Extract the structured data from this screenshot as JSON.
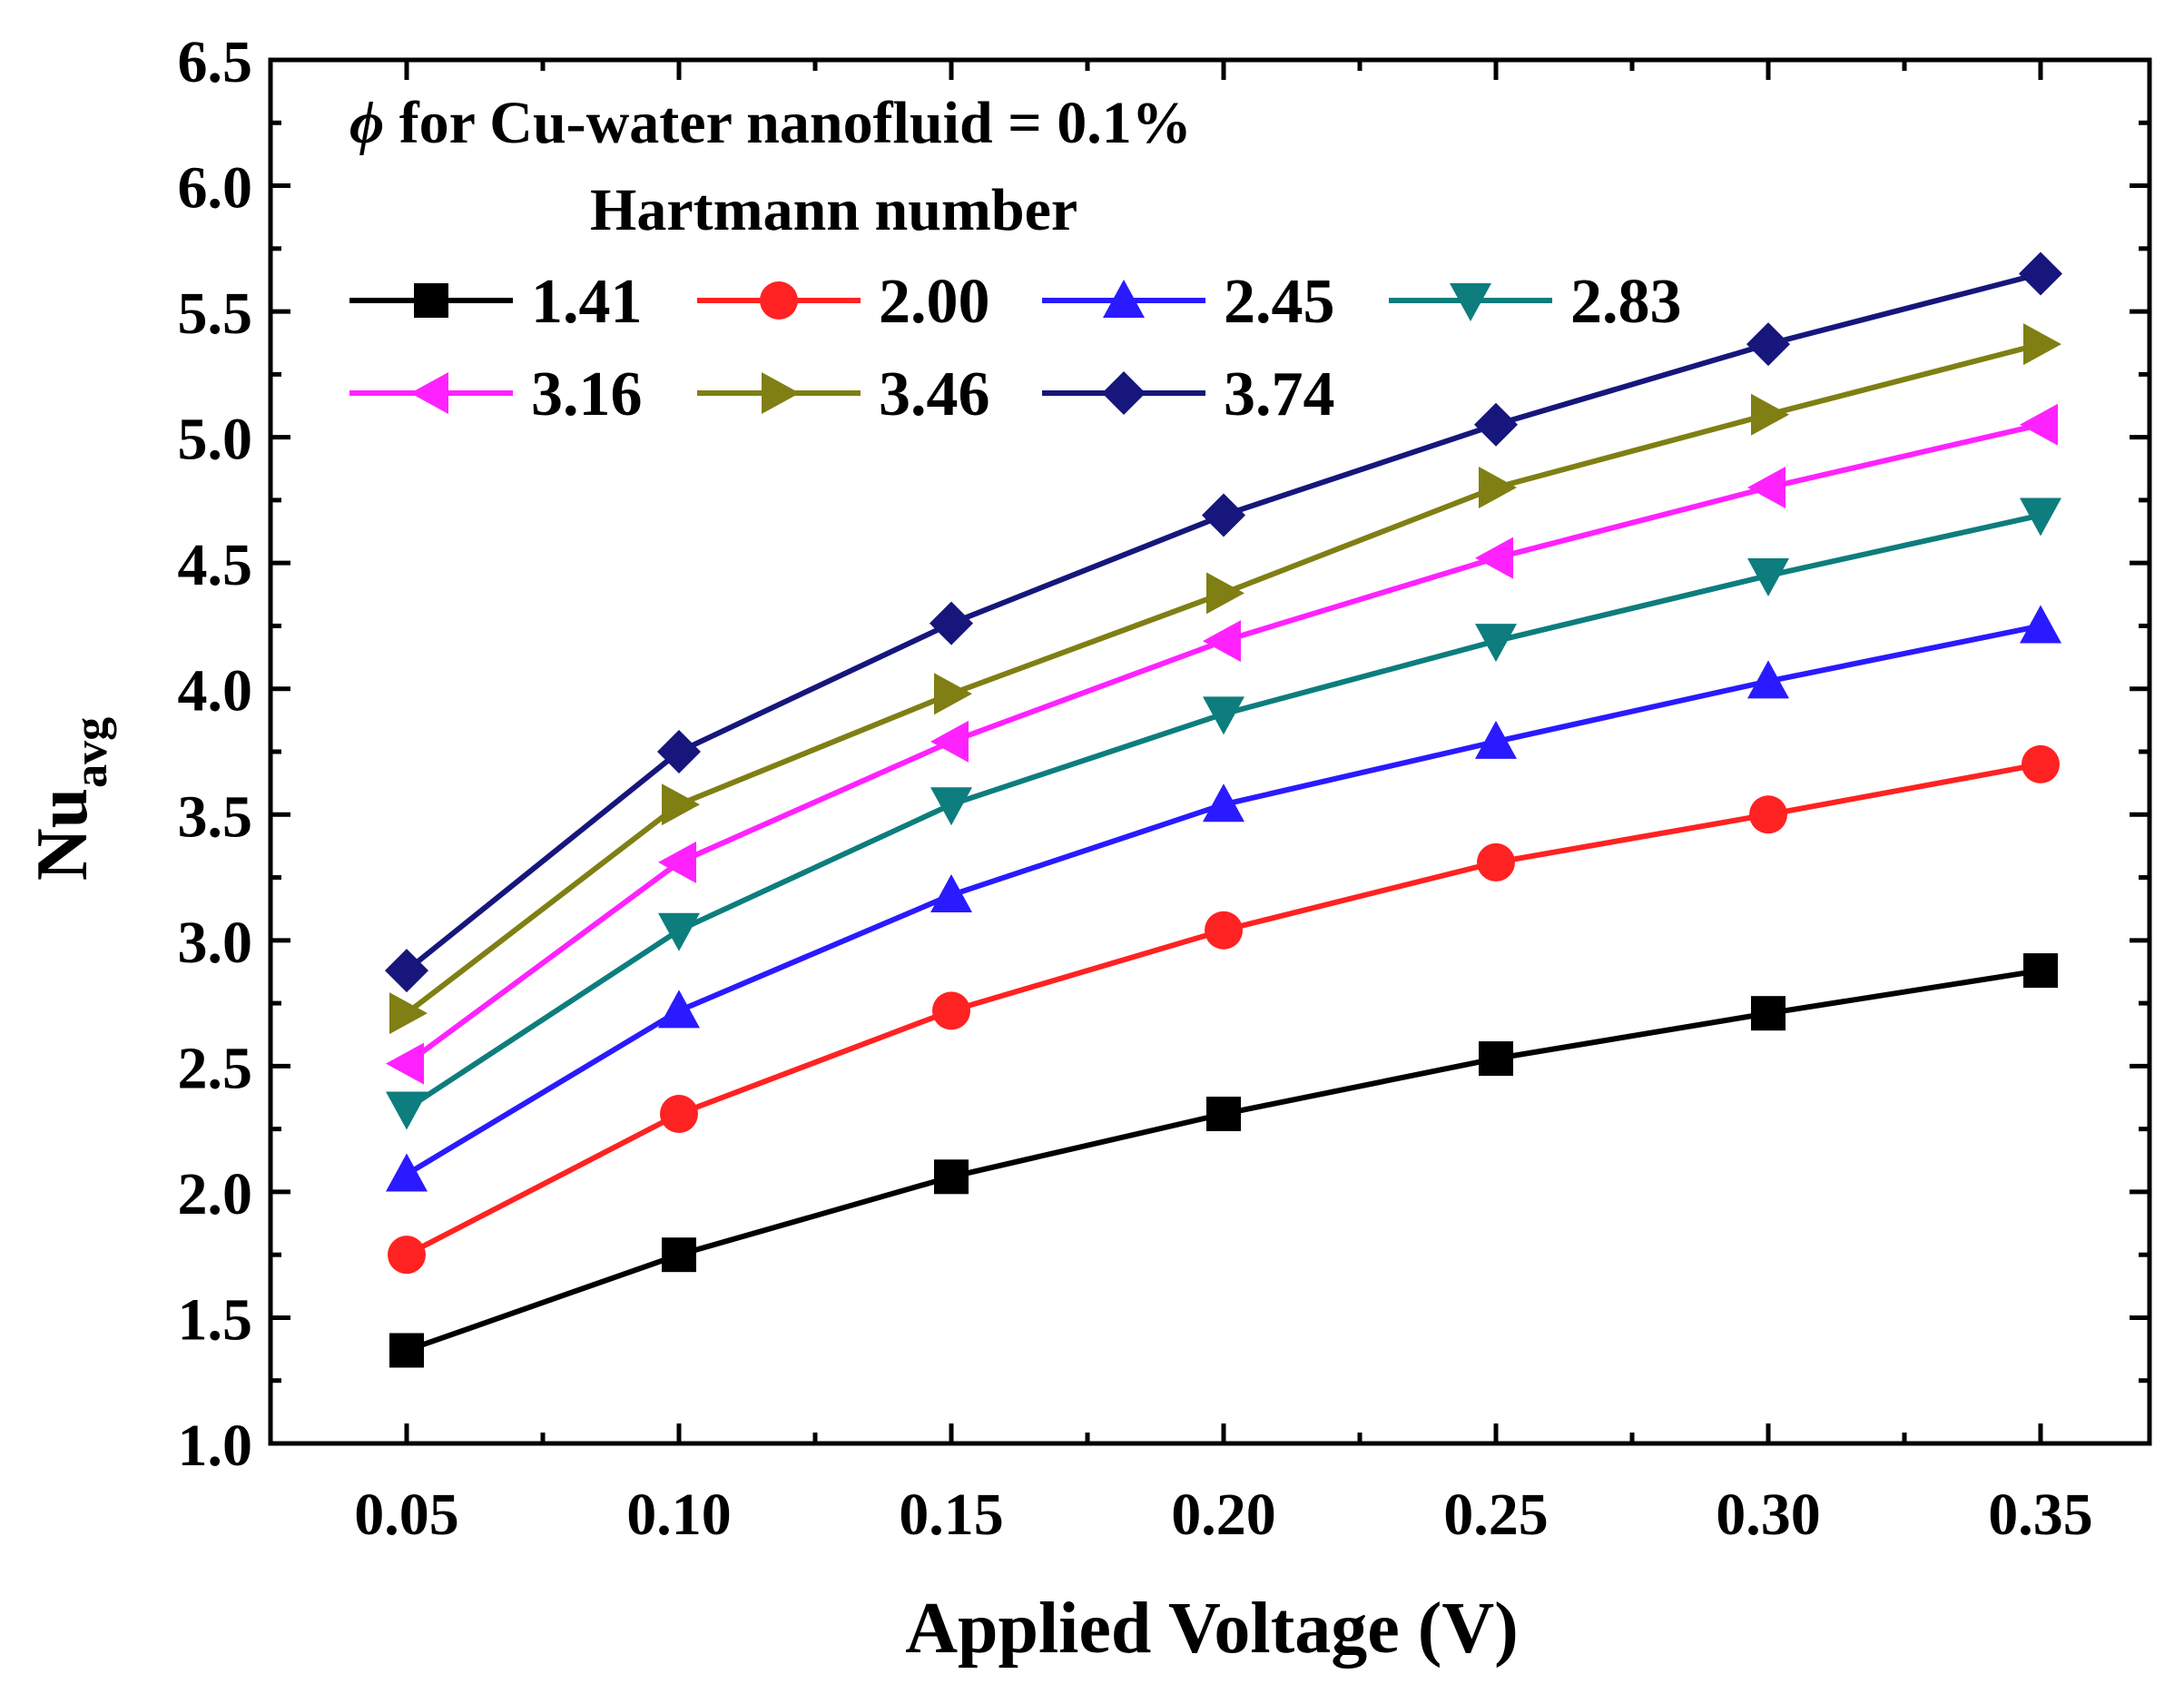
{
  "chart_data": {
    "type": "line",
    "title": "",
    "xlabel": "Applied Voltage (V)",
    "ylabel": {
      "main": "Nu",
      "sub": "avg"
    },
    "annotation": {
      "symbol": "ϕ",
      "text": " for Cu-water nanofluid = 0.1%",
      "legend_title": "Hartmann number"
    },
    "x": [
      0.05,
      0.1,
      0.15,
      0.2,
      0.25,
      0.3,
      0.35
    ],
    "xlim": [
      0.025,
      0.37
    ],
    "ylim": [
      1.0,
      6.5
    ],
    "xticks": [
      "0.05",
      "0.10",
      "0.15",
      "0.20",
      "0.25",
      "0.30",
      "0.35"
    ],
    "yticks": [
      "1.0",
      "1.5",
      "2.0",
      "2.5",
      "3.0",
      "3.5",
      "4.0",
      "4.5",
      "5.0",
      "5.5",
      "6.0",
      "6.5"
    ],
    "legend_position": "top-left",
    "series": [
      {
        "name": "1.41",
        "color": "#000000",
        "marker": "square",
        "values": [
          1.37,
          1.75,
          2.06,
          2.31,
          2.53,
          2.71,
          2.88
        ]
      },
      {
        "name": "2.00",
        "color": "#ff2222",
        "marker": "circle",
        "values": [
          1.75,
          2.31,
          2.72,
          3.04,
          3.31,
          3.5,
          3.7
        ]
      },
      {
        "name": "2.45",
        "color": "#2a1aff",
        "marker": "triangle-up",
        "values": [
          2.07,
          2.72,
          3.18,
          3.54,
          3.79,
          4.03,
          4.25
        ]
      },
      {
        "name": "2.83",
        "color": "#0d7d7d",
        "marker": "triangle-down",
        "values": [
          2.33,
          3.04,
          3.54,
          3.9,
          4.19,
          4.45,
          4.69
        ]
      },
      {
        "name": "3.16",
        "color": "#ff22ff",
        "marker": "triangle-left",
        "values": [
          2.51,
          3.31,
          3.79,
          4.19,
          4.52,
          4.8,
          5.05
        ]
      },
      {
        "name": "3.46",
        "color": "#7f7f14",
        "marker": "triangle-right",
        "values": [
          2.71,
          3.54,
          3.98,
          4.38,
          4.8,
          5.09,
          5.37
        ]
      },
      {
        "name": "3.74",
        "color": "#16167c",
        "marker": "diamond",
        "values": [
          2.88,
          3.75,
          4.26,
          4.69,
          5.05,
          5.37,
          5.65
        ]
      }
    ]
  }
}
